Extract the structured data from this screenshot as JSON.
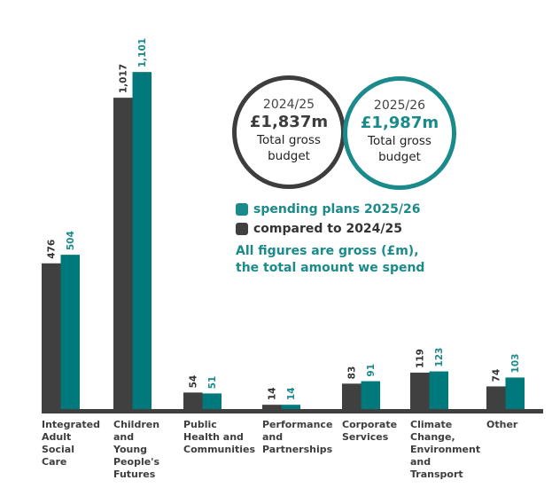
{
  "chart_data": {
    "type": "bar",
    "title": "",
    "xlabel": "",
    "ylabel": "",
    "ylim": [
      0,
      1101
    ],
    "categories": [
      [
        "Integrated",
        "Adult",
        "Social",
        "Care"
      ],
      [
        "Children",
        "and",
        "Young",
        "People's",
        "Futures"
      ],
      [
        "Public",
        "Health and",
        "Communities"
      ],
      [
        "Performance",
        "and",
        "Partnerships"
      ],
      [
        "Corporate",
        "Services"
      ],
      [
        "Climate",
        "Change,",
        "Environment",
        "and",
        "Transport"
      ],
      [
        "Other"
      ]
    ],
    "series": [
      {
        "name": "compared to 2024/25",
        "color": "#404040",
        "values": [
          476,
          1017,
          54,
          14,
          83,
          119,
          74
        ],
        "labels": [
          "476",
          "1,017",
          "54",
          "14",
          "83",
          "119",
          "74"
        ]
      },
      {
        "name": "spending plans 2025/26",
        "color": "#00797c",
        "values": [
          504,
          1101,
          51,
          14,
          91,
          123,
          103
        ],
        "labels": [
          "504",
          "1,101",
          "51",
          "14",
          "91",
          "123",
          "103"
        ]
      }
    ],
    "legend": {
      "placement": "top-right",
      "entries": [
        "spending plans 2025/26",
        "compared to 2024/25"
      ]
    },
    "note": [
      "All figures are gross (£m),",
      "the total amount we spend"
    ]
  },
  "circles": [
    {
      "year": "2024/25",
      "amount": "£1,837m",
      "label1": "Total gross",
      "label2": "budget",
      "color": "#3d3d3d"
    },
    {
      "year": "2025/26",
      "amount": "£1,987m",
      "label1": "Total gross",
      "label2": "budget",
      "color": "#1a8a8a"
    }
  ]
}
